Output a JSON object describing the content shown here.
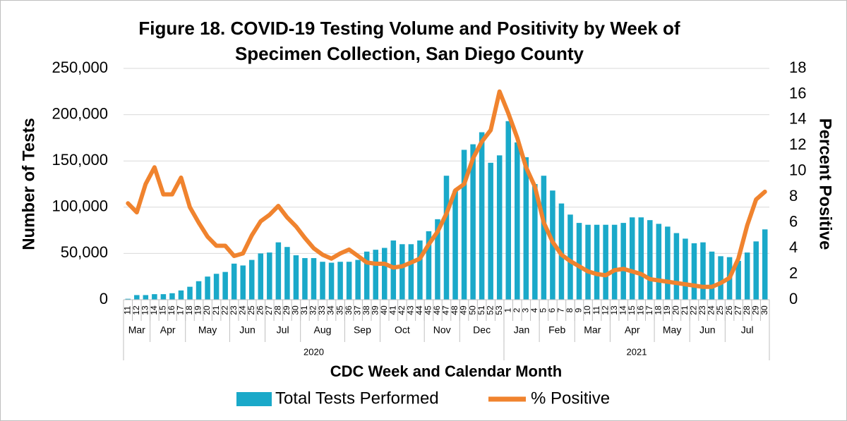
{
  "chart_data": {
    "type": "bar-line",
    "title": "Figure 18. COVID-19 Testing Volume and Positivity by Week of Specimen Collection, San Diego County",
    "y_label": "Number of Tests",
    "y2_label": "Percent Positive",
    "x_label": "CDC Week and Calendar Month",
    "categories": [
      "11",
      "12",
      "13",
      "14",
      "15",
      "16",
      "17",
      "18",
      "19",
      "20",
      "21",
      "22",
      "23",
      "24",
      "25",
      "26",
      "27",
      "28",
      "29",
      "30",
      "31",
      "32",
      "33",
      "34",
      "35",
      "36",
      "37",
      "38",
      "39",
      "40",
      "41",
      "42",
      "43",
      "44",
      "45",
      "46",
      "47",
      "48",
      "49",
      "50",
      "51",
      "52",
      "53",
      "1",
      "2",
      "3",
      "4",
      "5",
      "6",
      "7",
      "8",
      "9",
      "10",
      "11",
      "12",
      "13",
      "14",
      "15",
      "16",
      "17",
      "18",
      "19",
      "20",
      "21",
      "22",
      "23",
      "24",
      "25",
      "26",
      "27",
      "28",
      "29",
      "30"
    ],
    "months": [
      "Mar",
      "Mar",
      "Mar",
      "Apr",
      "Apr",
      "Apr",
      "Apr",
      "May",
      "May",
      "May",
      "May",
      "May",
      "Jun",
      "Jun",
      "Jun",
      "Jun",
      "Jul",
      "Jul",
      "Jul",
      "Jul",
      "Aug",
      "Aug",
      "Aug",
      "Aug",
      "Aug",
      "Sep",
      "Sep",
      "Sep",
      "Sep",
      "Oct",
      "Oct",
      "Oct",
      "Oct",
      "Oct",
      "Nov",
      "Nov",
      "Nov",
      "Nov",
      "Dec",
      "Dec",
      "Dec",
      "Dec",
      "Dec",
      "Jan",
      "Jan",
      "Jan",
      "Jan",
      "Feb",
      "Feb",
      "Feb",
      "Feb",
      "Mar",
      "Mar",
      "Mar",
      "Mar",
      "Apr",
      "Apr",
      "Apr",
      "Apr",
      "Apr",
      "May",
      "May",
      "May",
      "May",
      "Jun",
      "Jun",
      "Jun",
      "Jun",
      "Jul",
      "Jul",
      "Jul",
      "Jul",
      "Jul"
    ],
    "years": [
      "2020",
      "2020",
      "2020",
      "2020",
      "2020",
      "2020",
      "2020",
      "2020",
      "2020",
      "2020",
      "2020",
      "2020",
      "2020",
      "2020",
      "2020",
      "2020",
      "2020",
      "2020",
      "2020",
      "2020",
      "2020",
      "2020",
      "2020",
      "2020",
      "2020",
      "2020",
      "2020",
      "2020",
      "2020",
      "2020",
      "2020",
      "2020",
      "2020",
      "2020",
      "2020",
      "2020",
      "2020",
      "2020",
      "2020",
      "2020",
      "2020",
      "2020",
      "2020",
      "2021",
      "2021",
      "2021",
      "2021",
      "2021",
      "2021",
      "2021",
      "2021",
      "2021",
      "2021",
      "2021",
      "2021",
      "2021",
      "2021",
      "2021",
      "2021",
      "2021",
      "2021",
      "2021",
      "2021",
      "2021",
      "2021",
      "2021",
      "2021",
      "2021",
      "2021",
      "2021",
      "2021",
      "2021",
      "2021"
    ],
    "series": [
      {
        "name": "Total Tests Performed",
        "color": "#1aa9c9",
        "axis": "y",
        "values": [
          1000,
          5000,
          5000,
          6000,
          6000,
          7000,
          10000,
          14000,
          20000,
          25000,
          28000,
          30000,
          39000,
          37000,
          43000,
          50000,
          51000,
          62000,
          57000,
          48000,
          45000,
          45000,
          41000,
          40000,
          41000,
          41000,
          43000,
          52000,
          54000,
          56000,
          64000,
          60000,
          60000,
          64000,
          74000,
          87000,
          134000,
          118000,
          162000,
          168000,
          181000,
          148000,
          156000,
          193000,
          170000,
          154000,
          125000,
          134000,
          118000,
          104000,
          92000,
          83000,
          81000,
          81000,
          81000,
          81000,
          83000,
          89000,
          89000,
          86000,
          82000,
          79000,
          72000,
          66000,
          61000,
          62000,
          52000,
          47000,
          46000,
          42000,
          51000,
          63000,
          76000
        ]
      },
      {
        "name": "% Positive",
        "color": "#f0832e",
        "axis": "y2",
        "values": [
          7.5,
          6.8,
          9,
          10.3,
          8.2,
          8.2,
          9.5,
          7.2,
          6,
          4.9,
          4.2,
          4.2,
          3.4,
          3.6,
          5,
          6.1,
          6.6,
          7.3,
          6.4,
          5.7,
          4.8,
          4,
          3.5,
          3.2,
          3.6,
          3.9,
          3.4,
          2.9,
          2.8,
          2.8,
          2.5,
          2.6,
          2.9,
          3.2,
          4.3,
          5.3,
          6.7,
          8.5,
          9,
          11,
          12.3,
          13.2,
          16.2,
          14.5,
          12.6,
          10.3,
          8.8,
          6,
          4.5,
          3.5,
          3,
          2.6,
          2.2,
          2,
          1.9,
          2.3,
          2.4,
          2.2,
          2,
          1.6,
          1.5,
          1.4,
          1.3,
          1.2,
          1.1,
          1,
          1,
          1.3,
          1.7,
          3.2,
          5.8,
          7.8,
          8.4
        ]
      }
    ],
    "ylim": [
      0,
      250000
    ],
    "yticks": [
      0,
      {
        "value": 50000,
        "label": "50,000"
      },
      {
        "value": 100000,
        "label": "100,000"
      },
      {
        "value": 150000,
        "label": "150,000"
      },
      {
        "value": 200000,
        "label": "200,000"
      },
      {
        "value": 250000,
        "label": "250,000"
      }
    ],
    "y2lim": [
      0,
      18
    ],
    "y2ticks": [
      0,
      2,
      4,
      6,
      8,
      10,
      12,
      14,
      16,
      18
    ],
    "grid": true,
    "legend": "bottom"
  }
}
